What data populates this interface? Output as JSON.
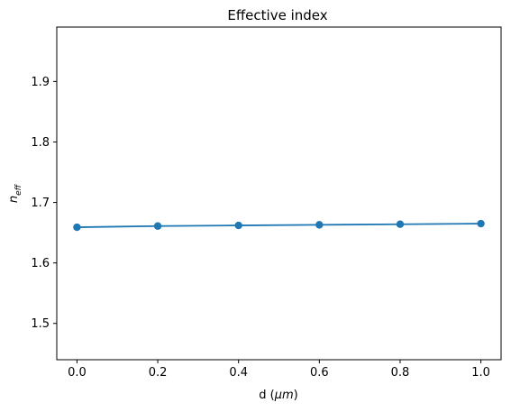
{
  "chart_data": {
    "type": "line",
    "title": "Effective index",
    "xlabel_prefix": "d (",
    "xlabel_unit": "μm",
    "xlabel_suffix": ")",
    "ylabel_main": "n",
    "ylabel_sub": "eff",
    "x": [
      0.0,
      0.2,
      0.4,
      0.6,
      0.8,
      1.0
    ],
    "series": [
      {
        "name": "n_eff",
        "color": "#1f77b4",
        "values": [
          1.659,
          1.661,
          1.662,
          1.663,
          1.664,
          1.665
        ]
      }
    ],
    "xlim": [
      -0.05,
      1.05
    ],
    "ylim": [
      1.44,
      1.99
    ],
    "xticks": [
      0.0,
      0.2,
      0.4,
      0.6,
      0.8,
      1.0
    ],
    "xtick_labels": [
      "0.0",
      "0.2",
      "0.4",
      "0.6",
      "0.8",
      "1.0"
    ],
    "yticks": [
      1.5,
      1.6,
      1.7,
      1.8,
      1.9
    ],
    "ytick_labels": [
      "1.5",
      "1.6",
      "1.7",
      "1.8",
      "1.9"
    ],
    "grid": false,
    "marker": "circle"
  }
}
